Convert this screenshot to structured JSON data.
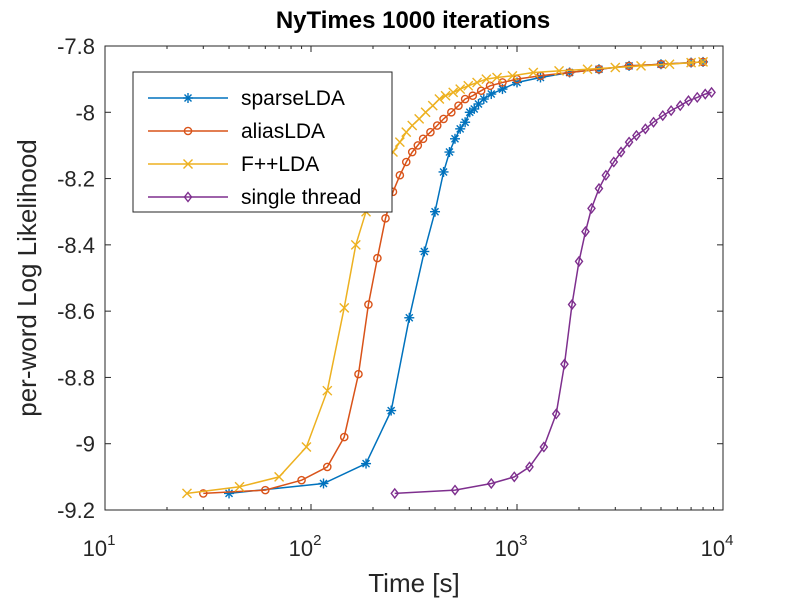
{
  "chart_data": {
    "type": "line",
    "title": "NyTimes 1000 iterations",
    "xlabel": "Time [s]",
    "ylabel": "per-word Log Likelihood",
    "x_scale": "log",
    "xlim": [
      10,
      10000
    ],
    "ylim": [
      -9.2,
      -7.8
    ],
    "x_ticks": [
      {
        "base": "10",
        "exp": "1",
        "value": 10
      },
      {
        "base": "10",
        "exp": "2",
        "value": 100
      },
      {
        "base": "10",
        "exp": "3",
        "value": 1000
      },
      {
        "base": "10",
        "exp": "4",
        "value": 10000
      }
    ],
    "y_ticks": [
      {
        "label": "-9.2",
        "value": -9.2
      },
      {
        "label": "-9",
        "value": -9.0
      },
      {
        "label": "-8.8",
        "value": -8.8
      },
      {
        "label": "-8.6",
        "value": -8.6
      },
      {
        "label": "-8.4",
        "value": -8.4
      },
      {
        "label": "-8.2",
        "value": -8.2
      },
      {
        "label": "-8",
        "value": -8.0
      },
      {
        "label": "-7.8",
        "value": -7.8
      }
    ],
    "grid": false,
    "legend_position": "top-left",
    "series": [
      {
        "name": "sparseLDA",
        "color": "#0072BD",
        "marker": "asterisk",
        "x": [
          40,
          115,
          185,
          245,
          300,
          355,
          400,
          440,
          470,
          500,
          530,
          560,
          590,
          620,
          650,
          690,
          750,
          850,
          1000,
          1300,
          1800,
          2500,
          3500,
          5000,
          7000,
          8000
        ],
        "y": [
          -9.15,
          -9.12,
          -9.06,
          -8.9,
          -8.62,
          -8.42,
          -8.3,
          -8.18,
          -8.12,
          -8.08,
          -8.05,
          -8.03,
          -8.0,
          -7.99,
          -7.975,
          -7.96,
          -7.945,
          -7.93,
          -7.91,
          -7.895,
          -7.88,
          -7.87,
          -7.86,
          -7.855,
          -7.85,
          -7.848
        ]
      },
      {
        "name": "aliasLDA",
        "color": "#D95319",
        "marker": "circle",
        "x": [
          30,
          60,
          90,
          120,
          145,
          170,
          190,
          210,
          230,
          250,
          270,
          290,
          310,
          330,
          350,
          380,
          410,
          440,
          480,
          520,
          560,
          610,
          670,
          740,
          850,
          1000,
          1300,
          1800,
          2500,
          3500,
          5000,
          7000,
          8000
        ],
        "y": [
          -9.15,
          -9.14,
          -9.11,
          -9.07,
          -8.98,
          -8.79,
          -8.58,
          -8.44,
          -8.32,
          -8.24,
          -8.19,
          -8.15,
          -8.12,
          -8.1,
          -8.08,
          -8.06,
          -8.04,
          -8.02,
          -8.0,
          -7.98,
          -7.96,
          -7.95,
          -7.935,
          -7.92,
          -7.91,
          -7.9,
          -7.89,
          -7.88,
          -7.87,
          -7.86,
          -7.855,
          -7.85,
          -7.848
        ]
      },
      {
        "name": "F++LDA",
        "color": "#EDB120",
        "marker": "x",
        "x": [
          25,
          45,
          70,
          95,
          120,
          145,
          165,
          185,
          200,
          215,
          230,
          250,
          270,
          290,
          310,
          335,
          360,
          390,
          420,
          450,
          490,
          530,
          580,
          640,
          710,
          800,
          950,
          1200,
          1600,
          2200,
          3000,
          4000,
          5500,
          7000,
          8000
        ],
        "y": [
          -9.15,
          -9.13,
          -9.1,
          -9.01,
          -8.84,
          -8.59,
          -8.4,
          -8.3,
          -8.24,
          -8.2,
          -8.16,
          -8.12,
          -8.09,
          -8.06,
          -8.04,
          -8.02,
          -8.0,
          -7.98,
          -7.96,
          -7.95,
          -7.94,
          -7.93,
          -7.92,
          -7.91,
          -7.9,
          -7.895,
          -7.89,
          -7.88,
          -7.875,
          -7.87,
          -7.865,
          -7.86,
          -7.855,
          -7.85,
          -7.848
        ]
      },
      {
        "name": "single thread",
        "color": "#7E2F8E",
        "marker": "diamond",
        "x": [
          255,
          500,
          750,
          970,
          1150,
          1350,
          1550,
          1700,
          1850,
          2000,
          2150,
          2300,
          2500,
          2700,
          2950,
          3200,
          3500,
          3800,
          4200,
          4600,
          5100,
          5600,
          6200,
          6800,
          7500,
          8200,
          8800
        ],
        "y": [
          -9.15,
          -9.14,
          -9.12,
          -9.1,
          -9.07,
          -9.01,
          -8.91,
          -8.76,
          -8.58,
          -8.45,
          -8.36,
          -8.29,
          -8.23,
          -8.19,
          -8.15,
          -8.12,
          -8.09,
          -8.07,
          -8.05,
          -8.03,
          -8.01,
          -7.995,
          -7.98,
          -7.965,
          -7.955,
          -7.945,
          -7.94
        ]
      }
    ]
  }
}
